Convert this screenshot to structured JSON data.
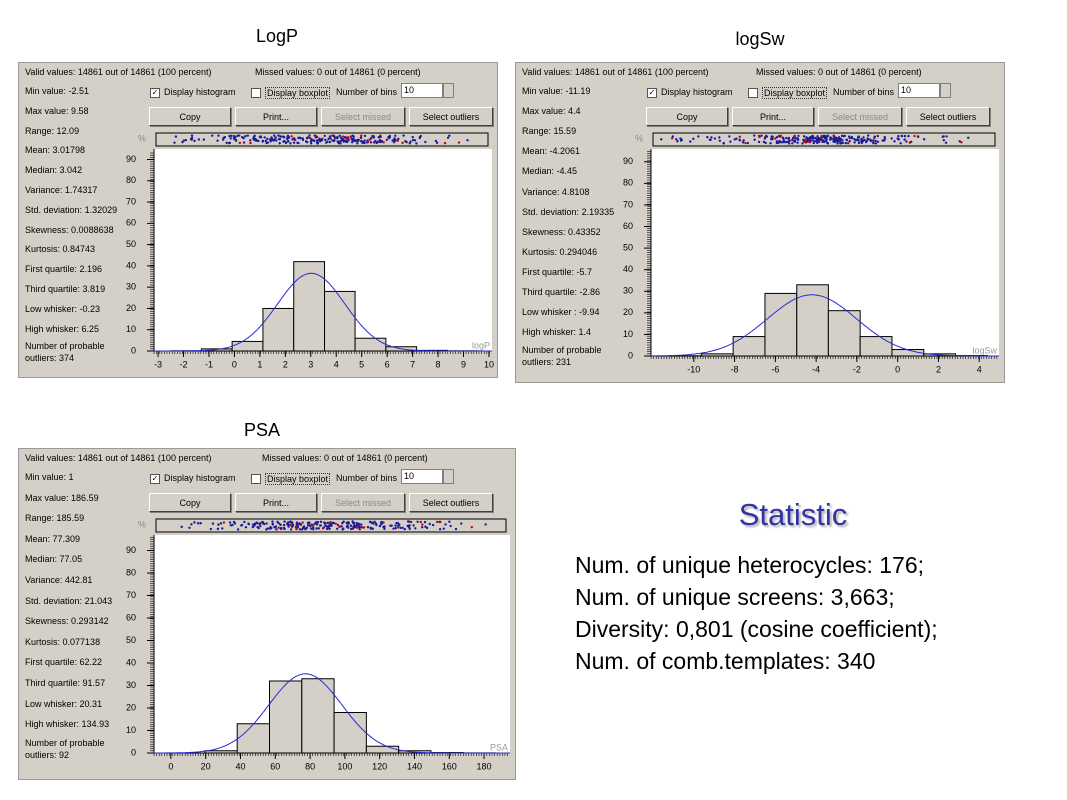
{
  "panels": [
    {
      "title": "LogP",
      "valid": "Valid values: 14861 out of 14861 (100 percent)",
      "missed": "Missed values: 0 out of 14861 (0 percent)",
      "stats": [
        {
          "label": "Min value:",
          "value": -2.51
        },
        {
          "label": "Max value:",
          "value": 9.58
        },
        {
          "label": "Range:",
          "value": 12.09
        },
        {
          "label": "Mean:",
          "value": 3.01798
        },
        {
          "label": "Median:",
          "value": 3.042
        },
        {
          "label": "Variance:",
          "value": 1.74317
        },
        {
          "label": "Std. deviation:",
          "value": 1.32029
        },
        {
          "label": "Skewness:",
          "value": 0.0088638
        },
        {
          "label": "Kurtosis:",
          "value": 0.84743
        },
        {
          "label": "First quartile:",
          "value": 2.196
        },
        {
          "label": "Third quartile:",
          "value": 3.819
        },
        {
          "label": "Low whisker:",
          "value": -0.23
        },
        {
          "label": "High whisker:",
          "value": 6.25
        },
        {
          "label": "Number of probable outliers:",
          "value": 374
        }
      ],
      "controls": {
        "histogram": "Display histogram",
        "boxplot": "Display boxplot",
        "bins_label": "Number of bins",
        "bins": "10"
      },
      "buttons": [
        "Copy",
        "Print...",
        "Select missed",
        "Select outliers"
      ],
      "histogram": {
        "axis_label": "logP",
        "y_unit": "%",
        "bins": [
          -2.51,
          -1.3,
          -0.09,
          1.12,
          2.33,
          3.54,
          4.74,
          5.95,
          7.16,
          8.37,
          9.58
        ],
        "values": [
          0.1,
          1,
          4.5,
          20,
          42,
          28,
          6,
          2,
          0.3,
          0.1
        ],
        "xlim": [
          -3.16,
          10.12
        ],
        "xticks": [
          -3,
          -2,
          -1,
          0,
          1,
          2,
          3,
          4,
          5,
          6,
          7,
          8,
          9,
          10
        ],
        "ylim": [
          0,
          94
        ],
        "yticks": [
          0,
          10,
          20,
          30,
          40,
          50,
          60,
          70,
          80,
          90
        ]
      }
    },
    {
      "title": "logSw",
      "valid": "Valid values: 14861 out of 14861 (100 percent)",
      "missed": "Missed values: 0 out of 14861 (0 percent)",
      "stats": [
        {
          "label": "Min value:",
          "value": -11.19
        },
        {
          "label": "Max value:",
          "value": 4.4
        },
        {
          "label": "Range:",
          "value": 15.59
        },
        {
          "label": "Mean:",
          "value": -4.2061
        },
        {
          "label": "Median:",
          "value": -4.45
        },
        {
          "label": "Variance:",
          "value": 4.8108
        },
        {
          "label": "Std. deviation:",
          "value": 2.19335
        },
        {
          "label": "Skewness:",
          "value": 0.43352
        },
        {
          "label": "Kurtosis:",
          "value": 0.294046
        },
        {
          "label": "First quartile:",
          "value": -5.7
        },
        {
          "label": "Third quartile:",
          "value": -2.86
        },
        {
          "label": "Low whisker :",
          "value": -9.94
        },
        {
          "label": "High whisker:",
          "value": 1.4
        },
        {
          "label": "Number of probable outliers:",
          "value": 231
        }
      ],
      "controls": {
        "histogram": "Display histogram",
        "boxplot": "Display boxplot",
        "bins_label": "Number of bins",
        "bins": "10"
      },
      "buttons": [
        "Copy",
        "Print...",
        "Select missed",
        "Select outliers"
      ],
      "histogram": {
        "axis_label": "logSw",
        "y_unit": "%",
        "bins": [
          -11.19,
          -9.63,
          -8.07,
          -6.51,
          -4.95,
          -3.4,
          -1.84,
          -0.28,
          1.28,
          2.84,
          4.4
        ],
        "values": [
          0.1,
          1,
          9,
          29,
          33,
          21,
          9,
          3,
          1,
          0.2
        ],
        "xlim": [
          -12.1,
          4.97
        ],
        "xticks": [
          -10,
          -8,
          -6,
          -4,
          -2,
          0,
          2,
          4
        ],
        "ylim": [
          0,
          95
        ],
        "yticks": [
          0,
          10,
          20,
          30,
          40,
          50,
          60,
          70,
          80,
          90
        ]
      }
    },
    {
      "title": "PSA",
      "valid": "Valid values: 14861 out of 14861 (100 percent)",
      "missed": "Missed values: 0 out of 14861 (0 percent)",
      "stats": [
        {
          "label": "Min value:",
          "value": 1
        },
        {
          "label": "Max value:",
          "value": 186.59
        },
        {
          "label": "Range:",
          "value": 185.59
        },
        {
          "label": "Mean:",
          "value": 77.309
        },
        {
          "label": "Median:",
          "value": 77.05
        },
        {
          "label": "Variance:",
          "value": 442.81
        },
        {
          "label": "Std. deviation:",
          "value": 21.043
        },
        {
          "label": "Skewness:",
          "value": 0.293142
        },
        {
          "label": "Kurtosis:",
          "value": 0.077138
        },
        {
          "label": "First quartile:",
          "value": 62.22
        },
        {
          "label": "Third quartile:",
          "value": 91.57
        },
        {
          "label": "Low whisker:",
          "value": 20.31
        },
        {
          "label": "High whisker:",
          "value": 134.93
        },
        {
          "label": "Number of probable outliers:",
          "value": 92
        }
      ],
      "controls": {
        "histogram": "Display histogram",
        "boxplot": "Display boxplot",
        "bins_label": "Number of bins",
        "bins": "10"
      },
      "buttons": [
        "Copy",
        "Print...",
        "Select missed",
        "Select outliers"
      ],
      "histogram": {
        "axis_label": "PSA",
        "y_unit": "%",
        "bins": [
          1,
          19.56,
          38.12,
          56.68,
          75.24,
          93.8,
          112.35,
          130.91,
          149.47,
          168.03,
          186.59
        ],
        "values": [
          0,
          1,
          13,
          32,
          33,
          18,
          3,
          1,
          0.2,
          0.05
        ],
        "xlim": [
          -9.7,
          194.9
        ],
        "xticks": [
          0,
          20,
          40,
          60,
          80,
          100,
          120,
          140,
          160,
          180
        ],
        "ylim": [
          0,
          96
        ],
        "yticks": [
          0,
          10,
          20,
          30,
          40,
          50,
          60,
          70,
          80,
          90
        ]
      }
    }
  ],
  "statistic": {
    "title": "Statistic",
    "lines": [
      "Num. of unique heterocycles: 176;",
      "Num. of unique screens: 3,663;",
      "Diversity: 0,801 (cosine coefficient);",
      "Num. of comb.templates: 340"
    ]
  }
}
